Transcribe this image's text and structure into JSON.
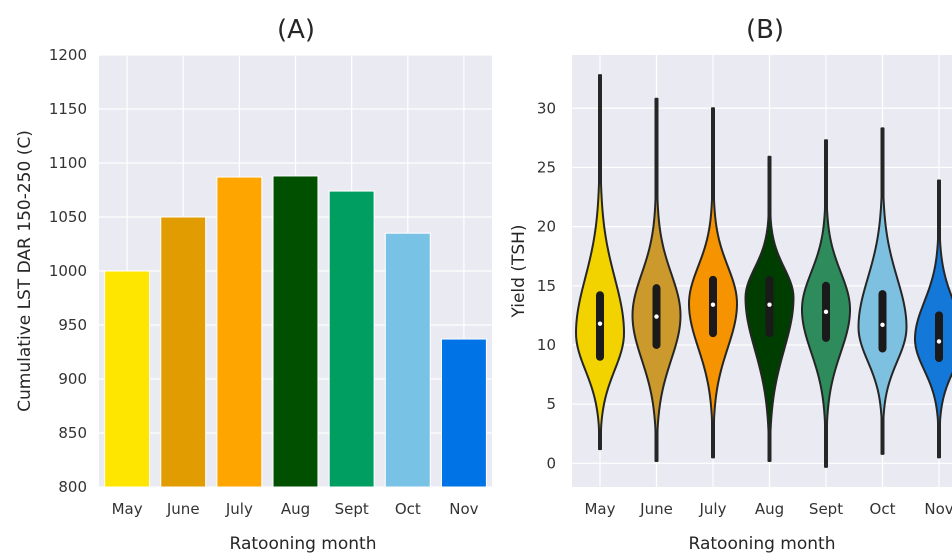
{
  "chart_data": [
    {
      "type": "bar",
      "title": "(A)",
      "xlabel": "Ratooning month",
      "ylabel": "Cumulative LST DAR 150-250 (C)",
      "categories": [
        "May",
        "June",
        "July",
        "Aug",
        "Sept",
        "Oct",
        "Nov"
      ],
      "values": [
        1000,
        1050,
        1087,
        1088,
        1074,
        1035,
        937
      ],
      "colors": [
        "#FFE600",
        "#E09C00",
        "#FFA500",
        "#005000",
        "#009E60",
        "#78C2E6",
        "#0073E6"
      ],
      "ylim": [
        800,
        1200
      ],
      "yticks": [
        "800",
        "850",
        "900",
        "950",
        "1000",
        "1050",
        "1100",
        "1150",
        "1200"
      ],
      "grid": true
    },
    {
      "type": "violin",
      "title": "(B)",
      "xlabel": "Ratooning month",
      "ylabel": "Yield (TSH)",
      "categories": [
        "May",
        "June",
        "July",
        "Aug",
        "Sept",
        "Oct",
        "Nov"
      ],
      "colors": [
        "#F2D300",
        "#CC9A2C",
        "#F59300",
        "#003D00",
        "#2E8B5C",
        "#7EC0E0",
        "#1478D8"
      ],
      "series": [
        {
          "min": 1.2,
          "q1": 9.0,
          "median": 11.8,
          "q3": 14.2,
          "max": 32.8,
          "mode": 11.0
        },
        {
          "min": 0.2,
          "q1": 10.0,
          "median": 12.4,
          "q3": 14.8,
          "max": 30.8,
          "mode": 12.5
        },
        {
          "min": 0.5,
          "q1": 11.0,
          "median": 13.4,
          "q3": 15.5,
          "max": 30.0,
          "mode": 13.5
        },
        {
          "min": 0.2,
          "q1": 11.0,
          "median": 13.4,
          "q3": 15.5,
          "max": 25.9,
          "mode": 14.0
        },
        {
          "min": -0.3,
          "q1": 10.6,
          "median": 12.8,
          "q3": 15.0,
          "max": 27.3,
          "mode": 13.0
        },
        {
          "min": 0.8,
          "q1": 9.7,
          "median": 11.7,
          "q3": 14.3,
          "max": 28.3,
          "mode": 11.5
        },
        {
          "min": 0.5,
          "q1": 8.9,
          "median": 10.3,
          "q3": 12.5,
          "max": 23.9,
          "mode": 10.5
        }
      ],
      "ylim": [
        -2,
        34.5
      ],
      "yticks": [
        "0",
        "5",
        "10",
        "15",
        "20",
        "25",
        "30"
      ],
      "grid": true
    }
  ]
}
